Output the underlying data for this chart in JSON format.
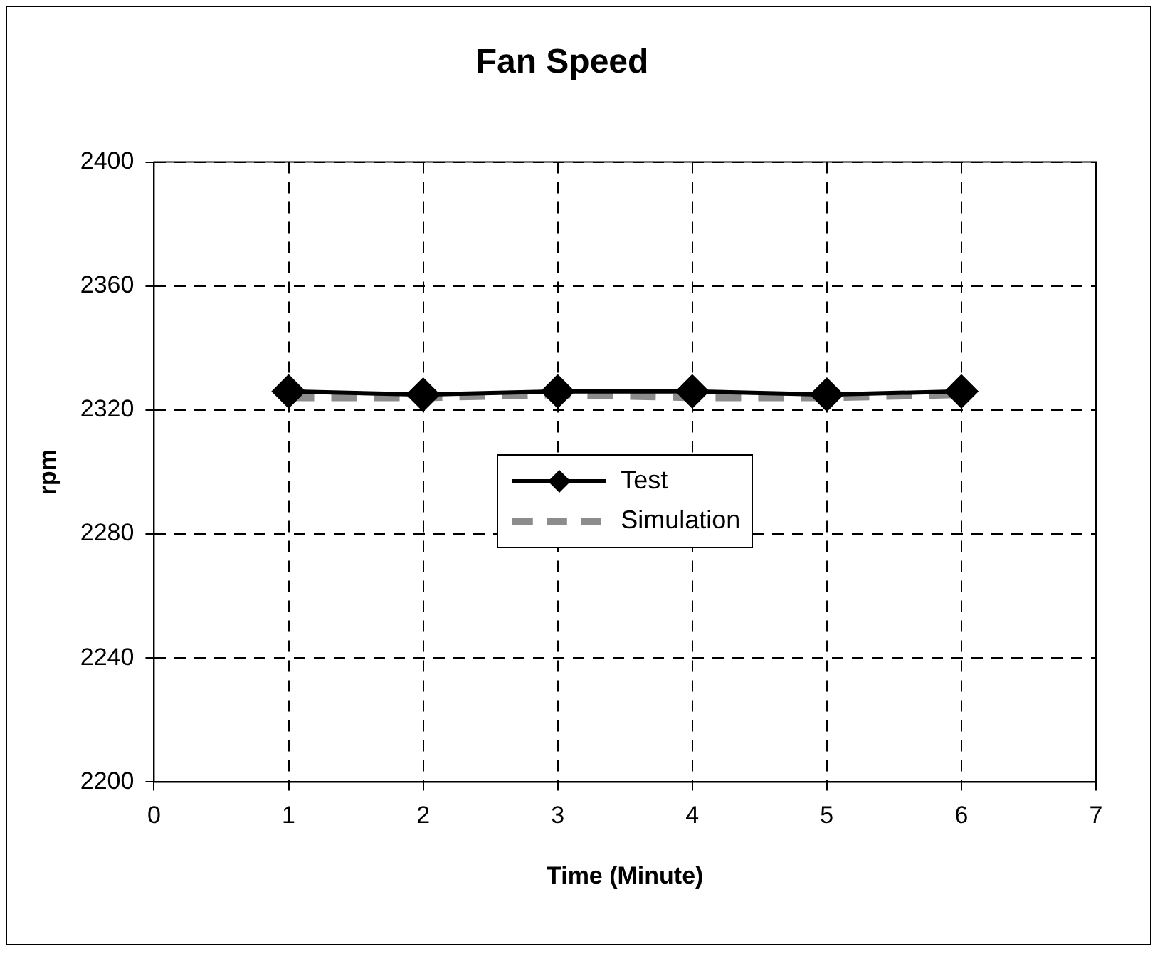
{
  "chart_data": {
    "type": "line",
    "title": "Fan Speed",
    "xlabel": "Time (Minute)",
    "ylabel": "rpm",
    "x": [
      1,
      2,
      3,
      4,
      5,
      6
    ],
    "series": [
      {
        "name": "Test",
        "color": "#000000",
        "values": [
          2326,
          2325,
          2326,
          2326,
          2325,
          2326
        ],
        "marker": "diamond",
        "line_style": "solid"
      },
      {
        "name": "Simulation",
        "color": "#8c8c8c",
        "values": [
          2324,
          2324,
          2325,
          2324,
          2324,
          2325
        ],
        "marker": "none",
        "line_style": "dashed"
      }
    ],
    "xlim": [
      0,
      7
    ],
    "xticks": [
      0,
      1,
      2,
      3,
      4,
      5,
      6,
      7
    ],
    "ylim": [
      2200,
      2400
    ],
    "yticks": [
      2200,
      2240,
      2280,
      2320,
      2360,
      2400
    ],
    "grid": true,
    "legend": "center"
  }
}
